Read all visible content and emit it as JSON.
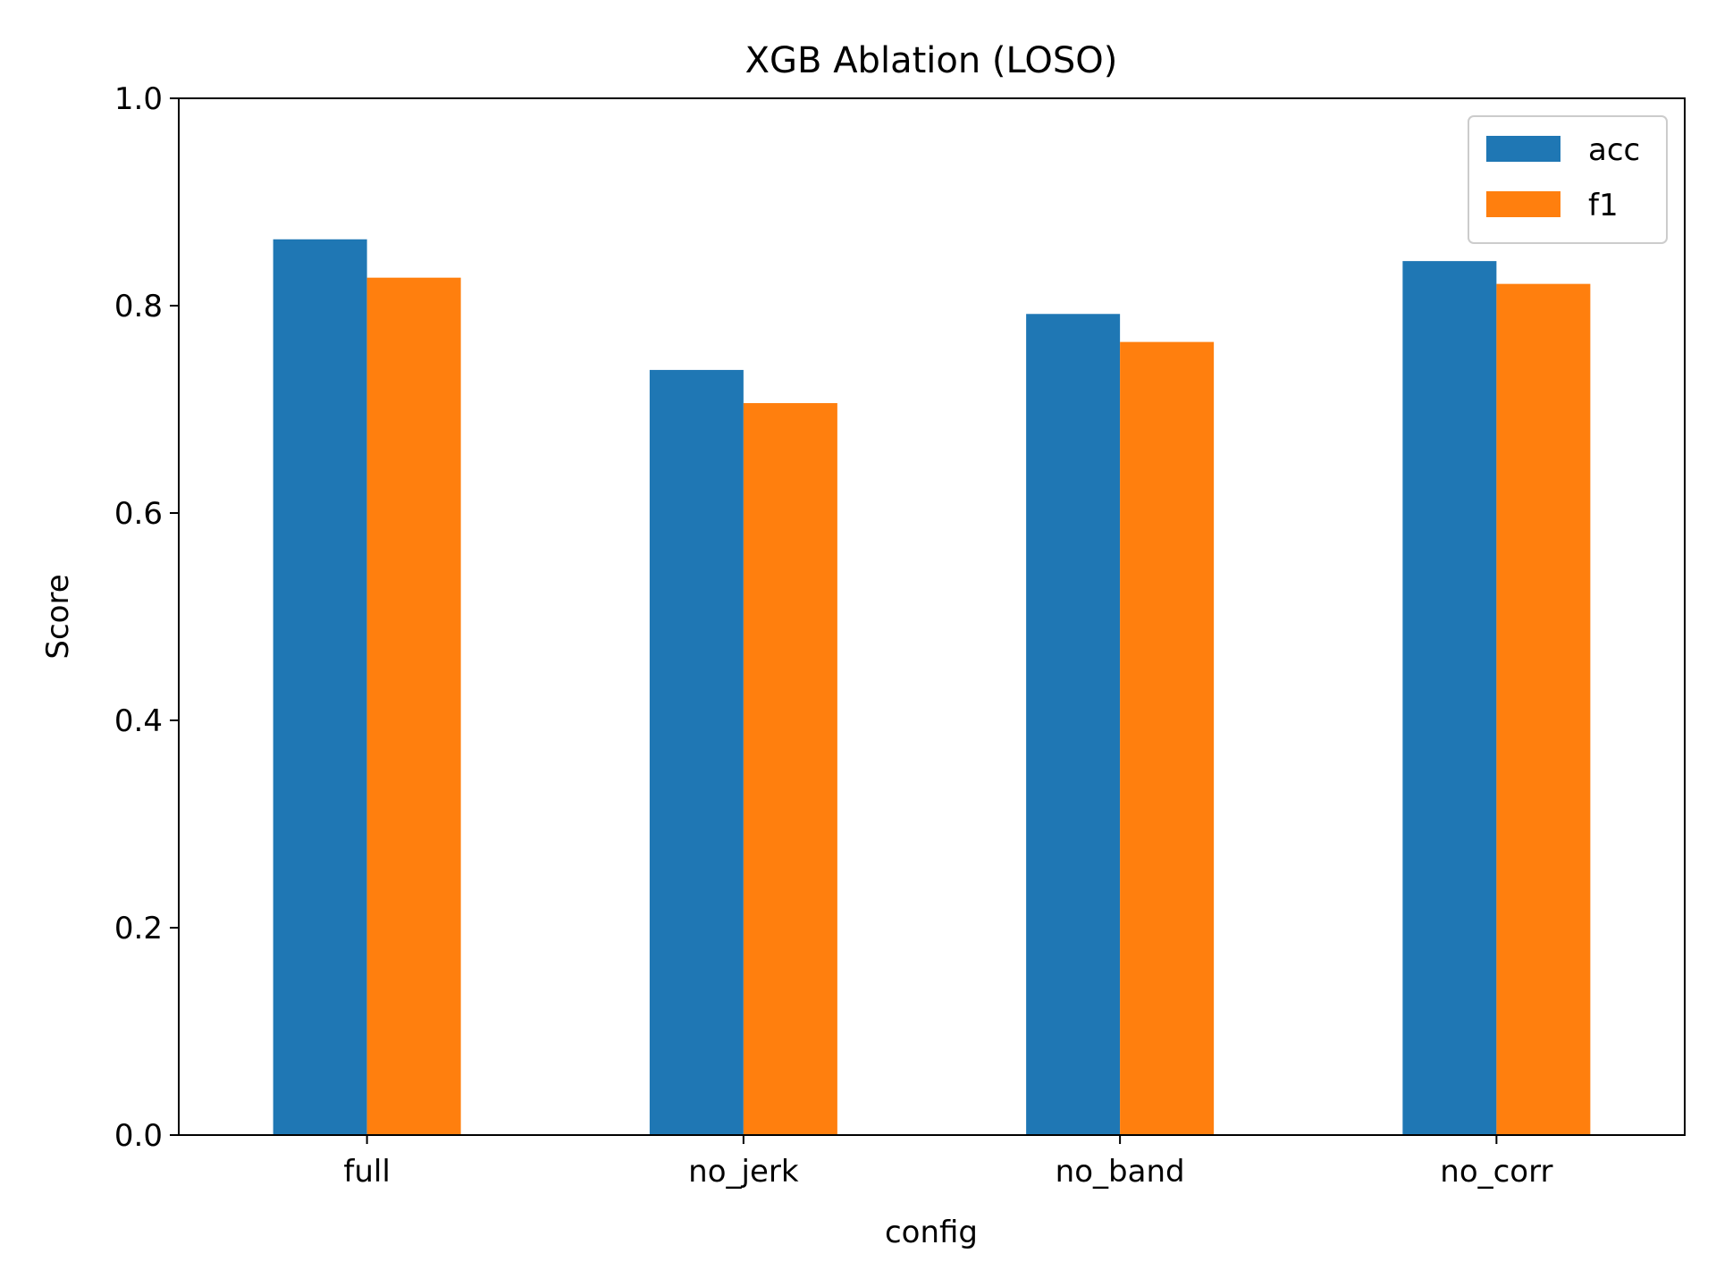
{
  "chart_data": {
    "type": "bar",
    "title": "XGB Ablation (LOSO)",
    "xlabel": "config",
    "ylabel": "Score",
    "categories": [
      "full",
      "no_jerk",
      "no_band",
      "no_corr"
    ],
    "series": [
      {
        "name": "acc",
        "color": "#1f77b4",
        "values": [
          0.864,
          0.738,
          0.792,
          0.843
        ]
      },
      {
        "name": "f1",
        "color": "#ff7f0e",
        "values": [
          0.827,
          0.706,
          0.765,
          0.821
        ]
      }
    ],
    "ylim": [
      0,
      1.0
    ],
    "yticks": [
      "0.0",
      "0.2",
      "0.4",
      "0.6",
      "0.8",
      "1.0"
    ],
    "grid": false,
    "legend_position": "top-right"
  }
}
